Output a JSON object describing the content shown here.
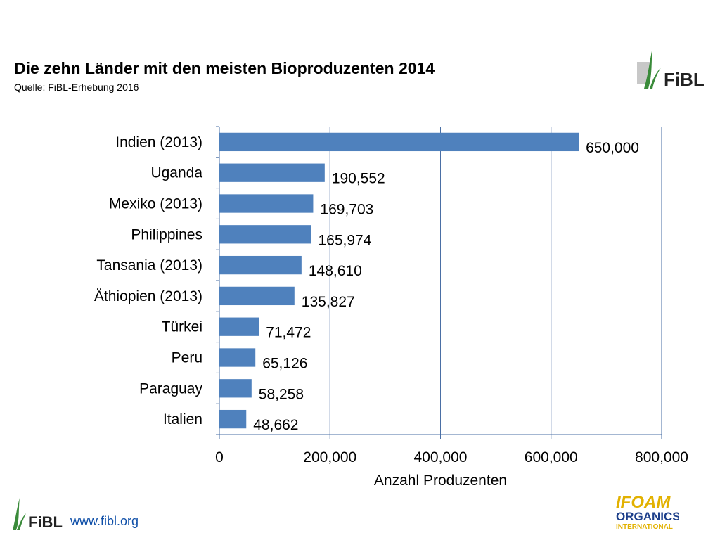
{
  "title": "Die zehn Länder mit den meisten Bioproduzenten 2014",
  "subtitle": "Quelle: FiBL-Erhebung 2016",
  "footer": {
    "url": "www.fibl.org"
  },
  "logos": {
    "fibl": "FiBL",
    "ifoam_top": "IFOAM",
    "ifoam_mid": "ORGANICS",
    "ifoam_bottom": "INTERNATIONAL"
  },
  "colors": {
    "bar": "#4f81bd",
    "grid": "#4a6fa5",
    "text": "#000000",
    "fibl_green": "#3a8b3a",
    "ifoam_yellow": "#e2b100",
    "ifoam_blue": "#1d3f8a"
  },
  "chart_data": {
    "type": "bar",
    "orientation": "horizontal",
    "categories": [
      "Indien (2013)",
      "Uganda",
      "Mexiko (2013)",
      "Philippines",
      "Tansania (2013)",
      "Äthiopien (2013)",
      "Türkei",
      "Peru",
      "Paraguay",
      "Italien"
    ],
    "values": [
      650000,
      190552,
      169703,
      165974,
      148610,
      135827,
      71472,
      65126,
      58258,
      48662
    ],
    "value_labels": [
      "650,000",
      "190,552",
      "169,703",
      "165,974",
      "148,610",
      "135,827",
      "71,472",
      "65,126",
      "58,258",
      "48,662"
    ],
    "xlabel": "Anzahl Produzenten",
    "xlim": [
      0,
      800000
    ],
    "xticks": [
      0,
      200000,
      400000,
      600000,
      800000
    ],
    "xtick_labels": [
      "0",
      "200,000",
      "400,000",
      "600,000",
      "800,000"
    ],
    "grid": true
  }
}
